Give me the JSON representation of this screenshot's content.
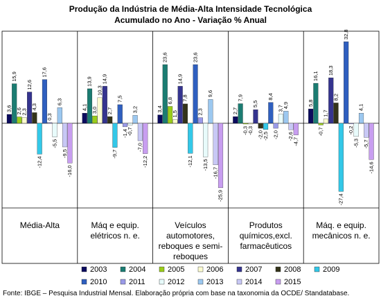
{
  "chart_data": {
    "type": "bar",
    "title": "Produção da Indústria de Média-Alta Intensidade Tecnológica",
    "subtitle": "Acumulado no Ano - Variação % Anual",
    "source": "Fonte: IBGE – Pesquisa Industrial Mensal. Elaboração própria com base na taxonomia da OCDE/ Standatabase.",
    "categories": [
      "Média-Alta",
      "Máq e equip. elétricos n. e.",
      "Veículos automotores, reboques e semi-reboques",
      "Produtos químicos,excl. farmacêuticos",
      "Máq. e equip. mecânicos n. e."
    ],
    "ylim": [
      -34,
      37
    ],
    "series": [
      {
        "name": "2003",
        "color": "#0b0b5e",
        "values": [
          3.6,
          4.1,
          3.4,
          2.7,
          5.8
        ],
        "value_labels": [
          "3,6",
          "4,1",
          "3,4",
          "2,7",
          "5,8"
        ]
      },
      {
        "name": "2004",
        "color": "#1b7c72",
        "values": [
          15.9,
          13.9,
          23.6,
          7.9,
          16.1
        ],
        "value_labels": [
          "15,9",
          "13,9",
          "23,6",
          "7,9",
          "16,1"
        ]
      },
      {
        "name": "2005",
        "color": "#9acd1a",
        "values": [
          2.6,
          3.0,
          6.8,
          -0.3,
          -0.7
        ],
        "value_labels": [
          "2,6",
          "3,0",
          "6,8",
          "-0,3",
          "-0,7"
        ]
      },
      {
        "name": "2006",
        "color": "#fbfbd0",
        "values": [
          2.3,
          10.3,
          1.5,
          -0.3,
          1.7
        ],
        "value_labels": [
          "2,3",
          "10,3",
          "1,5",
          "-0,3",
          "1,7"
        ]
      },
      {
        "name": "2007",
        "color": "#35348f",
        "values": [
          12.6,
          14.9,
          14.9,
          5.5,
          18.3
        ],
        "value_labels": [
          "12,6",
          "14,9",
          "14,9",
          "5,5",
          "18,3"
        ]
      },
      {
        "name": "2008",
        "color": "#33331a",
        "values": [
          4.3,
          2.7,
          7.8,
          -2.0,
          8.2
        ],
        "value_labels": [
          "4,3",
          "2,7",
          "7,8",
          "-2,0",
          "8,2"
        ]
      },
      {
        "name": "2009",
        "color": "#33c8e8",
        "values": [
          -12.4,
          -9.7,
          -12.1,
          -2.5,
          -27.4
        ],
        "value_labels": [
          "-12,4",
          "-9,7",
          "-12,1",
          "-2,5",
          "-27,4"
        ]
      },
      {
        "name": "2010",
        "color": "#2f5fbf",
        "values": [
          17.6,
          7.5,
          23.6,
          8.4,
          32.8
        ],
        "value_labels": [
          "17,6",
          "7,5",
          "23,6",
          "8,4",
          "32,8"
        ]
      },
      {
        "name": "2011",
        "color": "#9a9ae8",
        "values": [
          0.3,
          -1.4,
          2.3,
          -2.0,
          -0.2
        ],
        "value_labels": [
          "0,3",
          "-1,4",
          "2,3",
          "-2,0",
          "-0,2"
        ]
      },
      {
        "name": "2012",
        "color": "#e8fbfb",
        "values": [
          -5.5,
          -0.7,
          -13.5,
          3.7,
          -5.3
        ],
        "value_labels": [
          "-5,5",
          "-0,7",
          "-13,5",
          "3,7",
          "-5,3"
        ]
      },
      {
        "name": "2013",
        "color": "#9cc8f0",
        "values": [
          6.3,
          3.2,
          9.6,
          4.9,
          4.1
        ],
        "value_labels": [
          "6,3",
          "3,2",
          "9,6",
          "4,9",
          "4,1"
        ]
      },
      {
        "name": "2014",
        "color": "#c8c8f5",
        "values": [
          -9.5,
          -7.0,
          -16.7,
          -2.6,
          -5.7
        ],
        "value_labels": [
          "-9,5",
          "-7,0",
          "-16,7",
          "-2,6",
          "-5,7"
        ]
      },
      {
        "name": "2015",
        "color": "#c89ef0",
        "values": [
          -16.0,
          -12.2,
          -25.9,
          -4.7,
          -14.6
        ],
        "value_labels": [
          "-16,0",
          "-12,2",
          "-25,9",
          "-4,7",
          "-14,6"
        ]
      }
    ]
  }
}
